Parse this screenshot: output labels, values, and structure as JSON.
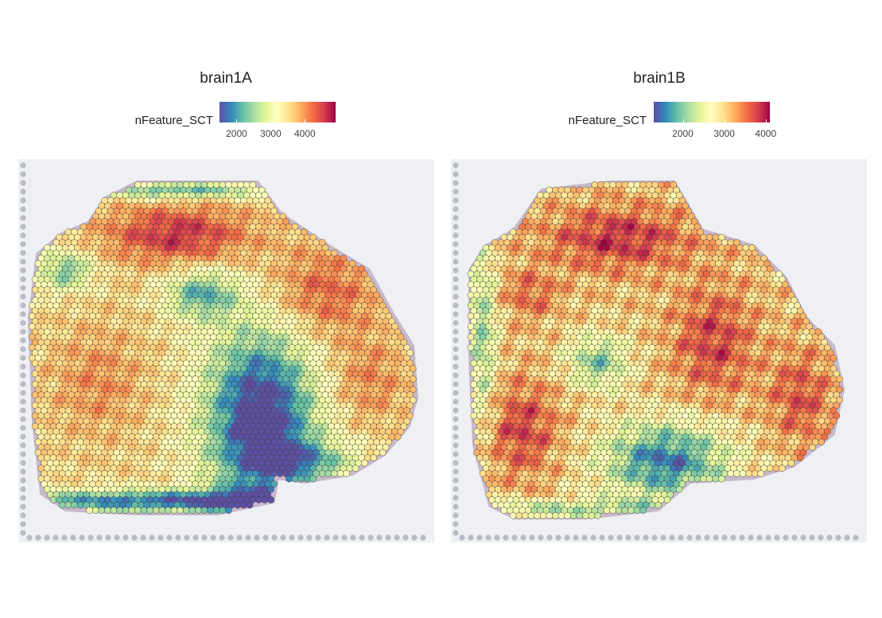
{
  "chart_data": [
    {
      "type": "heatmap",
      "title": "brain1A",
      "colorbar": {
        "label": "nFeature_SCT",
        "ticks": [
          2000,
          3000,
          4000
        ],
        "range": [
          1500,
          4900
        ],
        "palette": [
          "#5E4FA2",
          "#3288BD",
          "#66C2A5",
          "#ABDDA4",
          "#E6F598",
          "#FFFFBF",
          "#FEE08B",
          "#FDAE61",
          "#F46D43",
          "#D53E4F",
          "#9E0142"
        ]
      }
    },
    {
      "type": "heatmap",
      "title": "brain1B",
      "colorbar": {
        "label": "nFeature_SCT",
        "ticks": [
          2000,
          3000,
          4000
        ],
        "range": [
          1300,
          4100
        ],
        "palette": [
          "#5E4FA2",
          "#3288BD",
          "#66C2A5",
          "#ABDDA4",
          "#E6F598",
          "#FFFFBF",
          "#FEE08B",
          "#FDAE61",
          "#F46D43",
          "#D53E4F",
          "#9E0142"
        ]
      }
    }
  ]
}
